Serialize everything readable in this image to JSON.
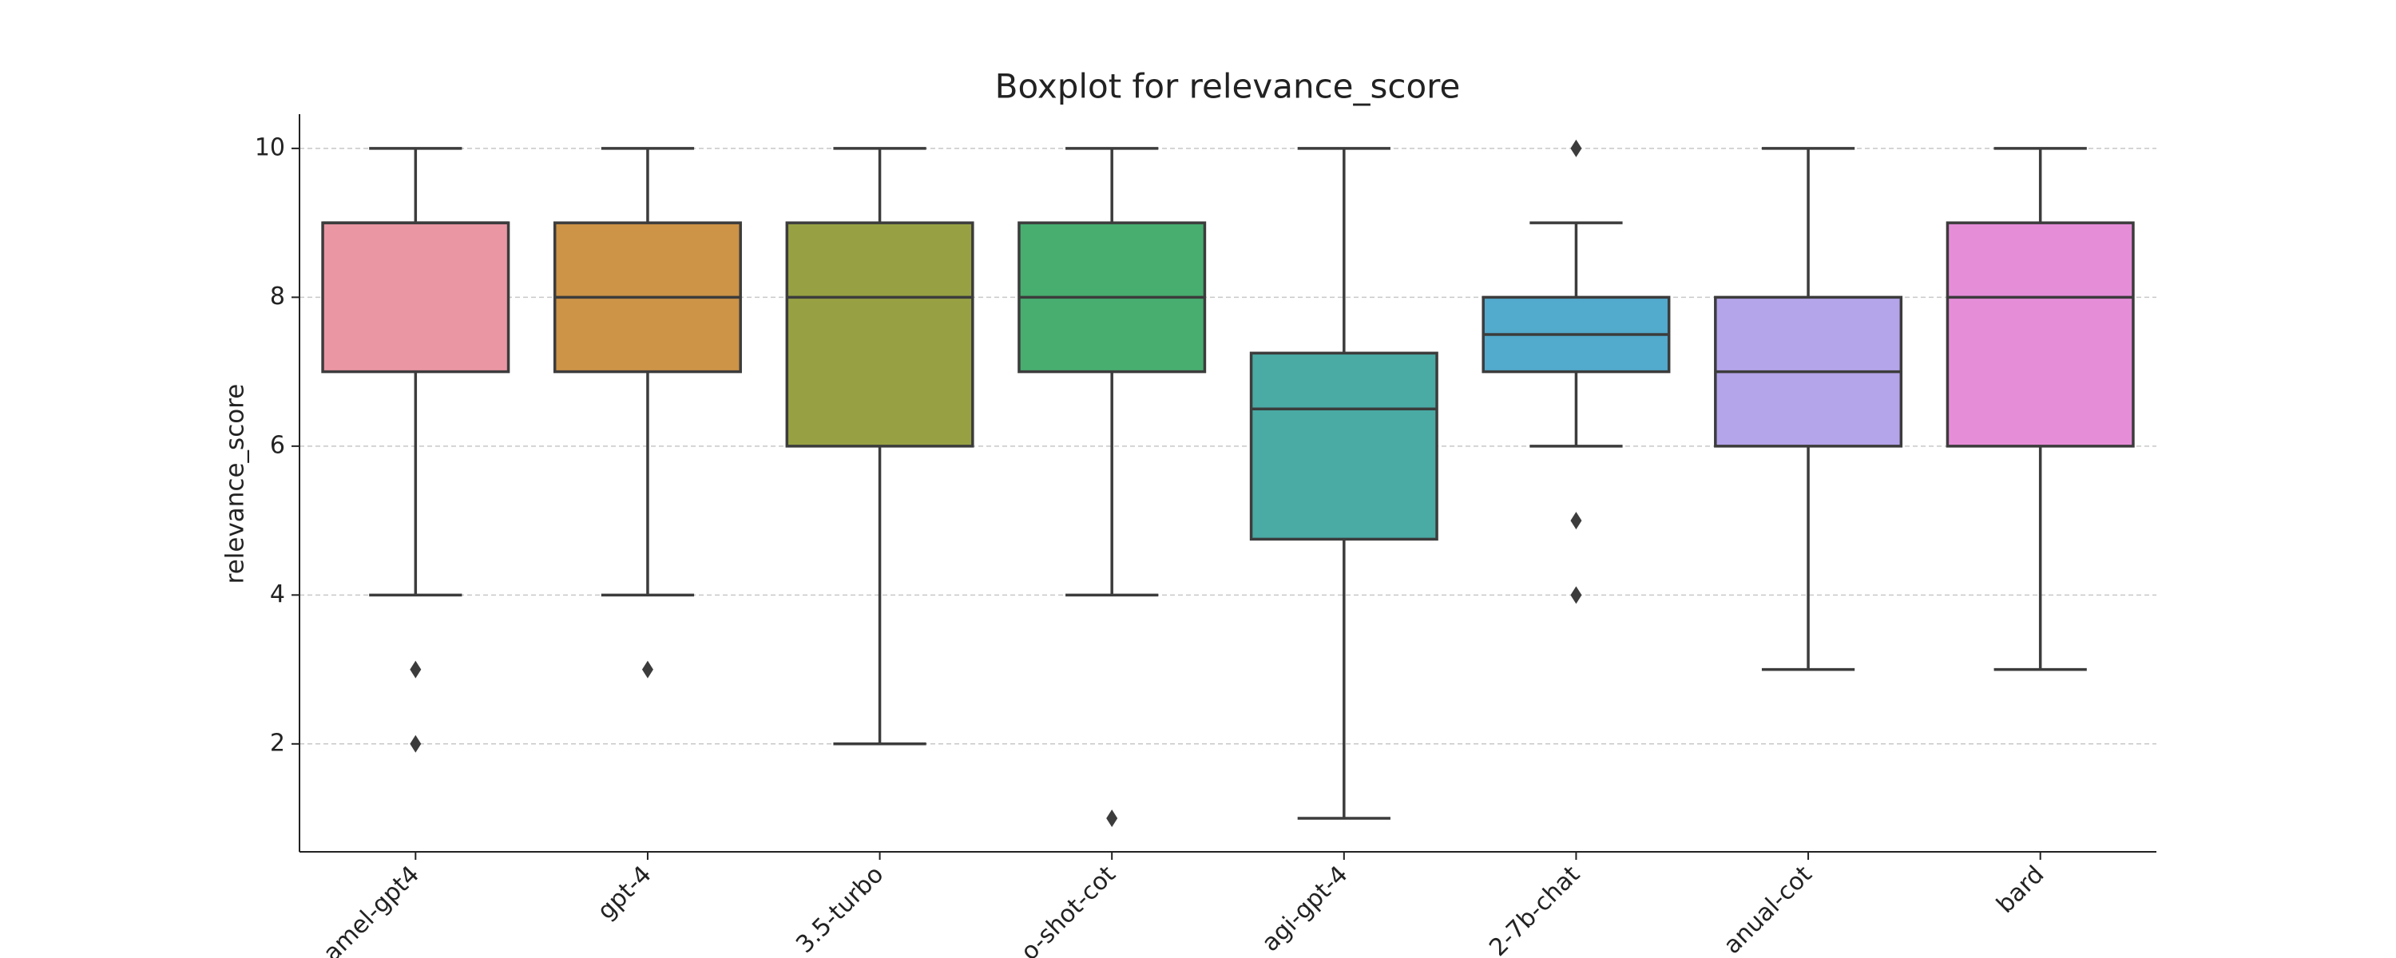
{
  "chart_data": {
    "type": "box",
    "title": "Boxplot for relevance_score",
    "ylabel": "relevance_score",
    "categories": [
      "amel-gpt4",
      "gpt-4",
      "3.5-turbo",
      "o-shot-cot",
      "agi-gpt-4",
      "2-7b-chat",
      "anual-cot",
      "bard"
    ],
    "colors": [
      "#ea96a3",
      "#cd9347",
      "#97a143",
      "#47ae70",
      "#4aaaa4",
      "#52aacd",
      "#b4a4ea",
      "#e68dd8"
    ],
    "boxes": [
      {
        "whislo": 4,
        "q1": 7,
        "med": 9,
        "q3": 9,
        "whishi": 10,
        "fliers": [
          3,
          2
        ]
      },
      {
        "whislo": 4,
        "q1": 7,
        "med": 8,
        "q3": 9,
        "whishi": 10,
        "fliers": [
          3
        ]
      },
      {
        "whislo": 2,
        "q1": 6,
        "med": 8,
        "q3": 9,
        "whishi": 10,
        "fliers": []
      },
      {
        "whislo": 4,
        "q1": 7,
        "med": 8,
        "q3": 9,
        "whishi": 10,
        "fliers": [
          1
        ]
      },
      {
        "whislo": 1,
        "q1": 4.75,
        "med": 6.5,
        "q3": 7.25,
        "whishi": 10,
        "fliers": []
      },
      {
        "whislo": 6,
        "q1": 7,
        "med": 7.5,
        "q3": 8,
        "whishi": 9,
        "fliers": [
          10,
          5,
          4
        ]
      },
      {
        "whislo": 3,
        "q1": 6,
        "med": 7,
        "q3": 8,
        "whishi": 10,
        "fliers": []
      },
      {
        "whislo": 3,
        "q1": 6,
        "med": 8,
        "q3": 9,
        "whishi": 10,
        "fliers": []
      }
    ],
    "ylim": [
      0.55,
      10.46
    ],
    "yticks": [
      2,
      4,
      6,
      8,
      10
    ],
    "grid": true
  }
}
